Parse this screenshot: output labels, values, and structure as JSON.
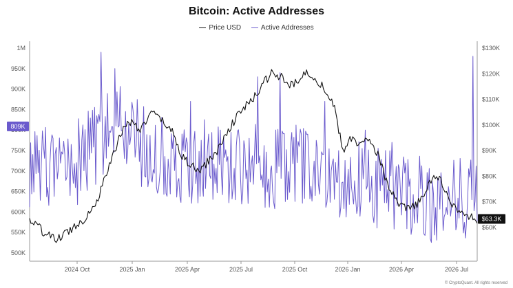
{
  "chart_data": {
    "type": "line",
    "title": "Bitcoin: Active Addresses",
    "legend_placement": "top-center",
    "grid": false,
    "x_ticks": [
      "2024 Oct",
      "2025 Jan",
      "2025 Apr",
      "2025 Jul",
      "2025 Oct",
      "2026 Jan",
      "2026 Apr",
      "2026 Jul"
    ],
    "x_range": [
      "2024-08",
      "2026-08"
    ],
    "y_left": {
      "ticks": [
        "1M",
        "950K",
        "900K",
        "850K",
        "800K",
        "750K",
        "700K",
        "650K",
        "600K",
        "550K",
        "500K"
      ],
      "range": [
        500000,
        1000000
      ],
      "current_label": "809K",
      "current_value": 809000
    },
    "y_right": {
      "ticks": [
        "$130K",
        "$120K",
        "$110K",
        "$100K",
        "$90K",
        "$80K",
        "$70K",
        "$60K"
      ],
      "range": [
        50000,
        130000
      ],
      "current_label": "$63.3K",
      "current_value": 63300
    },
    "series": [
      {
        "name": "Price USD",
        "axis": "right",
        "color": "#111111",
        "anchors": [
          [
            0,
            63000
          ],
          [
            0.02,
            60000
          ],
          [
            0.04,
            57000
          ],
          [
            0.06,
            55000
          ],
          [
            0.09,
            59000
          ],
          [
            0.12,
            63000
          ],
          [
            0.15,
            70000
          ],
          [
            0.18,
            85000
          ],
          [
            0.2,
            95000
          ],
          [
            0.22,
            102000
          ],
          [
            0.25,
            98000
          ],
          [
            0.27,
            105000
          ],
          [
            0.3,
            101000
          ],
          [
            0.32,
            97000
          ],
          [
            0.34,
            88000
          ],
          [
            0.36,
            84000
          ],
          [
            0.38,
            82000
          ],
          [
            0.4,
            86000
          ],
          [
            0.42,
            90000
          ],
          [
            0.45,
            100000
          ],
          [
            0.48,
            107000
          ],
          [
            0.5,
            110000
          ],
          [
            0.52,
            116000
          ],
          [
            0.54,
            120000
          ],
          [
            0.56,
            119000
          ],
          [
            0.58,
            115000
          ],
          [
            0.6,
            117000
          ],
          [
            0.62,
            121000
          ],
          [
            0.64,
            118000
          ],
          [
            0.66,
            114000
          ],
          [
            0.68,
            107000
          ],
          [
            0.7,
            90000
          ],
          [
            0.72,
            95000
          ],
          [
            0.74,
            92000
          ],
          [
            0.76,
            95000
          ],
          [
            0.78,
            88000
          ],
          [
            0.8,
            76000
          ],
          [
            0.82,
            70000
          ],
          [
            0.84,
            67000
          ],
          [
            0.86,
            68000
          ],
          [
            0.88,
            72000
          ],
          [
            0.9,
            80000
          ],
          [
            0.92,
            78000
          ],
          [
            0.94,
            70000
          ],
          [
            0.96,
            66000
          ],
          [
            0.98,
            64000
          ],
          [
            1,
            63300
          ]
        ]
      },
      {
        "name": "Active Addresses",
        "axis": "left",
        "color": "#6a5acd",
        "base": [
          [
            0,
            700000
          ],
          [
            0.1,
            715000
          ],
          [
            0.15,
            760000
          ],
          [
            0.2,
            820000
          ],
          [
            0.25,
            760000
          ],
          [
            0.3,
            730000
          ],
          [
            0.4,
            720000
          ],
          [
            0.5,
            715000
          ],
          [
            0.6,
            710000
          ],
          [
            0.7,
            690000
          ],
          [
            0.8,
            650000
          ],
          [
            0.9,
            630000
          ],
          [
            1,
            640000
          ]
        ],
        "spikes": [
          [
            0.16,
            990000
          ],
          [
            0.19,
            950000
          ],
          [
            0.36,
            870000
          ],
          [
            0.51,
            930000
          ],
          [
            0.56,
            940000
          ],
          [
            0.66,
            870000
          ],
          [
            0.75,
            800000
          ],
          [
            0.81,
            770000
          ],
          [
            0.99,
            980000
          ]
        ]
      }
    ],
    "footer": "© CryptoQuant. All rights reserved"
  }
}
